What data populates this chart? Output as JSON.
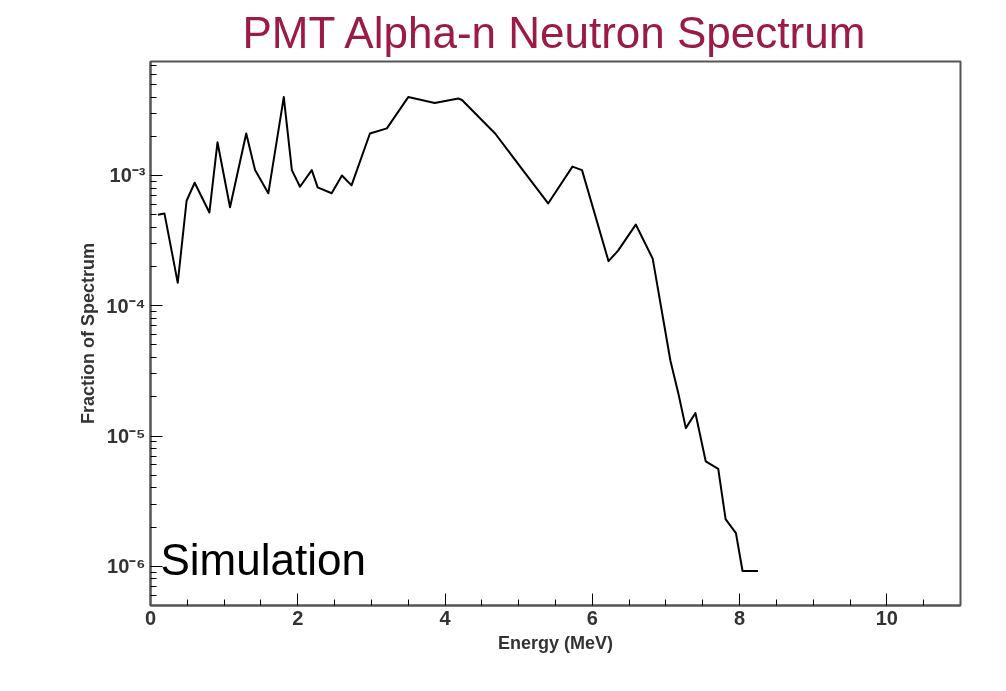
{
  "chart_data": {
    "type": "line",
    "title": "PMT Alpha-n Neutron Spectrum",
    "xlabel": "Energy (MeV)",
    "ylabel": "Fraction of Spectrum",
    "annotations": [
      "Simulation"
    ],
    "log": "y",
    "grid": false,
    "marker": "none",
    "line_style": "solid",
    "xlim": [
      0,
      11
    ],
    "ylim": [
      5e-07,
      0.0075
    ],
    "xticks": [
      0,
      {
        "value": 0.5,
        "label": null
      },
      {
        "value": 1,
        "label": null
      },
      {
        "value": 1.5,
        "label": null
      },
      2,
      {
        "value": 2.5,
        "label": null
      },
      {
        "value": 3,
        "label": null
      },
      {
        "value": 3.5,
        "label": null
      },
      4,
      {
        "value": 4.5,
        "label": null
      },
      {
        "value": 5,
        "label": null
      },
      {
        "value": 5.5,
        "label": null
      },
      6,
      {
        "value": 6.5,
        "label": null
      },
      {
        "value": 7,
        "label": null
      },
      {
        "value": 7.5,
        "label": null
      },
      8,
      {
        "value": 8.5,
        "label": null
      },
      {
        "value": 9,
        "label": null
      },
      {
        "value": 9.5,
        "label": null
      },
      10,
      {
        "value": 10.5,
        "label": null
      }
    ],
    "yticks": [
      {
        "value": 1e-06,
        "label": "10⁻⁶"
      },
      {
        "value": 1e-05,
        "label": "10⁻⁵"
      },
      {
        "value": 0.0001,
        "label": "10⁻⁴"
      },
      {
        "value": 0.001,
        "label": "10⁻³"
      },
      {
        "value": 6e-07,
        "label": null
      },
      {
        "value": 7e-07,
        "label": null
      },
      {
        "value": 8e-07,
        "label": null
      },
      {
        "value": 9e-07,
        "label": null
      },
      {
        "value": 2e-06,
        "label": null
      },
      {
        "value": 3e-06,
        "label": null
      },
      {
        "value": 4e-06,
        "label": null
      },
      {
        "value": 5e-06,
        "label": null
      },
      {
        "value": 6e-06,
        "label": null
      },
      {
        "value": 7e-06,
        "label": null
      },
      {
        "value": 8e-06,
        "label": null
      },
      {
        "value": 9e-06,
        "label": null
      },
      {
        "value": 2e-05,
        "label": null
      },
      {
        "value": 3e-05,
        "label": null
      },
      {
        "value": 4e-05,
        "label": null
      },
      {
        "value": 5e-05,
        "label": null
      },
      {
        "value": 6e-05,
        "label": null
      },
      {
        "value": 7e-05,
        "label": null
      },
      {
        "value": 8e-05,
        "label": null
      },
      {
        "value": 9e-05,
        "label": null
      },
      {
        "value": 0.0002,
        "label": null
      },
      {
        "value": 0.0003,
        "label": null
      },
      {
        "value": 0.0004,
        "label": null
      },
      {
        "value": 0.0005,
        "label": null
      },
      {
        "value": 0.0006,
        "label": null
      },
      {
        "value": 0.0007,
        "label": null
      },
      {
        "value": 0.0008,
        "label": null
      },
      {
        "value": 0.0009,
        "label": null
      },
      {
        "value": 0.002,
        "label": null
      },
      {
        "value": 0.003,
        "label": null
      },
      {
        "value": 0.004,
        "label": null
      },
      {
        "value": 0.005,
        "label": null
      },
      {
        "value": 0.006,
        "label": null
      },
      {
        "value": 0.007,
        "label": null
      }
    ],
    "series": [
      {
        "color": "#000000",
        "x": [
          0.1,
          0.19,
          0.37,
          0.49,
          0.6,
          0.8,
          0.91,
          1.08,
          1.3,
          1.42,
          1.6,
          1.81,
          1.92,
          2.03,
          2.19,
          2.27,
          2.46,
          2.6,
          2.73,
          2.98,
          3.21,
          3.5,
          3.86,
          4.18,
          4.23,
          4.68,
          5.09,
          5.4,
          5.73,
          5.86,
          6.22,
          6.35,
          6.59,
          6.82,
          7.06,
          7.17,
          7.27,
          7.4,
          7.54,
          7.71,
          7.81,
          7.95,
          8.04,
          8.19,
          8.25
        ],
        "values": [
          0.0005,
          0.00051,
          0.00015,
          0.00064,
          0.00088,
          0.00052,
          0.0018,
          0.00057,
          0.0021,
          0.0011,
          0.00073,
          0.004,
          0.0011,
          0.00082,
          0.0011,
          0.00081,
          0.00073,
          0.001,
          0.00084,
          0.0021,
          0.0023,
          0.004,
          0.0036,
          0.0039,
          0.0038,
          0.0021,
          0.00104,
          0.00061,
          0.00117,
          0.0011,
          0.00022,
          0.000265,
          0.00042,
          0.00023,
          3.8e-05,
          2.1e-05,
          1.15e-05,
          1.5e-05,
          6.4e-06,
          5.6e-06,
          2.3e-06,
          1.8e-06,
          9.2e-07,
          9.2e-07,
          9.2e-07
        ]
      }
    ]
  }
}
